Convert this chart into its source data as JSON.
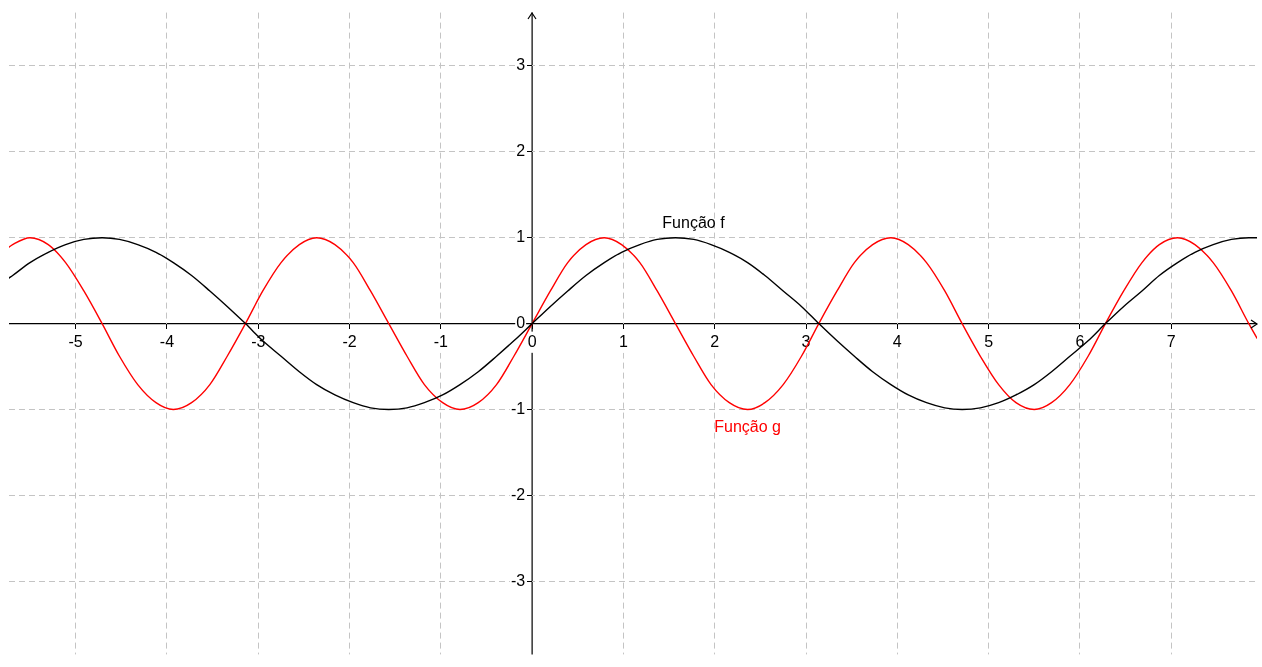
{
  "chart_data": {
    "type": "line",
    "x": [
      -5.73,
      -5.69,
      -5.5,
      -5.3,
      -5.11,
      -4.91,
      -4.71,
      -4.52,
      -4.32,
      -4.12,
      -3.93,
      -3.73,
      -3.53,
      -3.34,
      -3.14,
      -2.95,
      -2.75,
      -2.55,
      -2.36,
      -2.16,
      -1.96,
      -1.77,
      -1.57,
      -1.37,
      -1.18,
      -0.98,
      -0.79,
      -0.59,
      -0.39,
      -0.2,
      0,
      0.2,
      0.39,
      0.59,
      0.79,
      0.98,
      1.18,
      1.37,
      1.57,
      1.77,
      1.96,
      2.16,
      2.36,
      2.55,
      2.75,
      2.95,
      3.14,
      3.34,
      3.53,
      3.73,
      3.93,
      4.12,
      4.32,
      4.52,
      4.71,
      4.91,
      5.11,
      5.3,
      5.5,
      5.69,
      5.89,
      6.09,
      6.28,
      6.48,
      6.68,
      6.87,
      7.07,
      7.26,
      7.46,
      7.66,
      7.85,
      7.94
    ],
    "xlim": [
      -5.73,
      7.94
    ],
    "ylim": [
      -3.85,
      3.62
    ],
    "xticks": [
      -5,
      -4,
      -3,
      -2,
      -1,
      0,
      1,
      2,
      3,
      4,
      5,
      6,
      7
    ],
    "yticks": [
      -3,
      -2,
      -1,
      0,
      1,
      2,
      3
    ],
    "grid": true,
    "legend": false,
    "marker": "none",
    "line_style": "solid",
    "series": [
      {
        "name": "Função f",
        "color": "#000000",
        "values": [
          0.53,
          0.56,
          0.71,
          0.83,
          0.92,
          0.98,
          1,
          0.98,
          0.92,
          0.83,
          0.71,
          0.56,
          0.38,
          0.2,
          0,
          -0.2,
          -0.38,
          -0.56,
          -0.71,
          -0.83,
          -0.92,
          -0.98,
          -1,
          -0.98,
          -0.92,
          -0.83,
          -0.71,
          -0.56,
          -0.38,
          -0.2,
          0,
          0.2,
          0.38,
          0.56,
          0.71,
          0.83,
          0.92,
          0.98,
          1,
          0.98,
          0.92,
          0.83,
          0.71,
          0.56,
          0.38,
          0.2,
          0,
          -0.2,
          -0.38,
          -0.56,
          -0.71,
          -0.83,
          -0.92,
          -0.98,
          -1,
          -0.98,
          -0.92,
          -0.83,
          -0.71,
          -0.56,
          -0.38,
          -0.2,
          0,
          0.2,
          0.38,
          0.56,
          0.71,
          0.83,
          0.92,
          0.98,
          1,
          1.0
        ]
      },
      {
        "name": "Função g",
        "color": "#ff0000",
        "values": [
          0.89,
          0.92,
          1,
          0.92,
          0.71,
          0.38,
          0,
          -0.38,
          -0.71,
          -0.92,
          -1,
          -0.92,
          -0.71,
          -0.38,
          0,
          0.38,
          0.71,
          0.92,
          1,
          0.92,
          0.71,
          0.38,
          0,
          -0.38,
          -0.71,
          -0.92,
          -1,
          -0.92,
          -0.71,
          -0.38,
          0,
          0.38,
          0.71,
          0.92,
          1,
          0.92,
          0.71,
          0.38,
          0,
          -0.38,
          -0.71,
          -0.92,
          -1,
          -0.92,
          -0.71,
          -0.38,
          0,
          0.38,
          0.71,
          0.92,
          1,
          0.92,
          0.71,
          0.38,
          0,
          -0.38,
          -0.71,
          -0.92,
          -1,
          -0.92,
          -0.71,
          -0.38,
          0,
          0.38,
          0.71,
          0.92,
          1,
          0.92,
          0.71,
          0.38,
          0,
          -0.17
        ]
      }
    ]
  }
}
